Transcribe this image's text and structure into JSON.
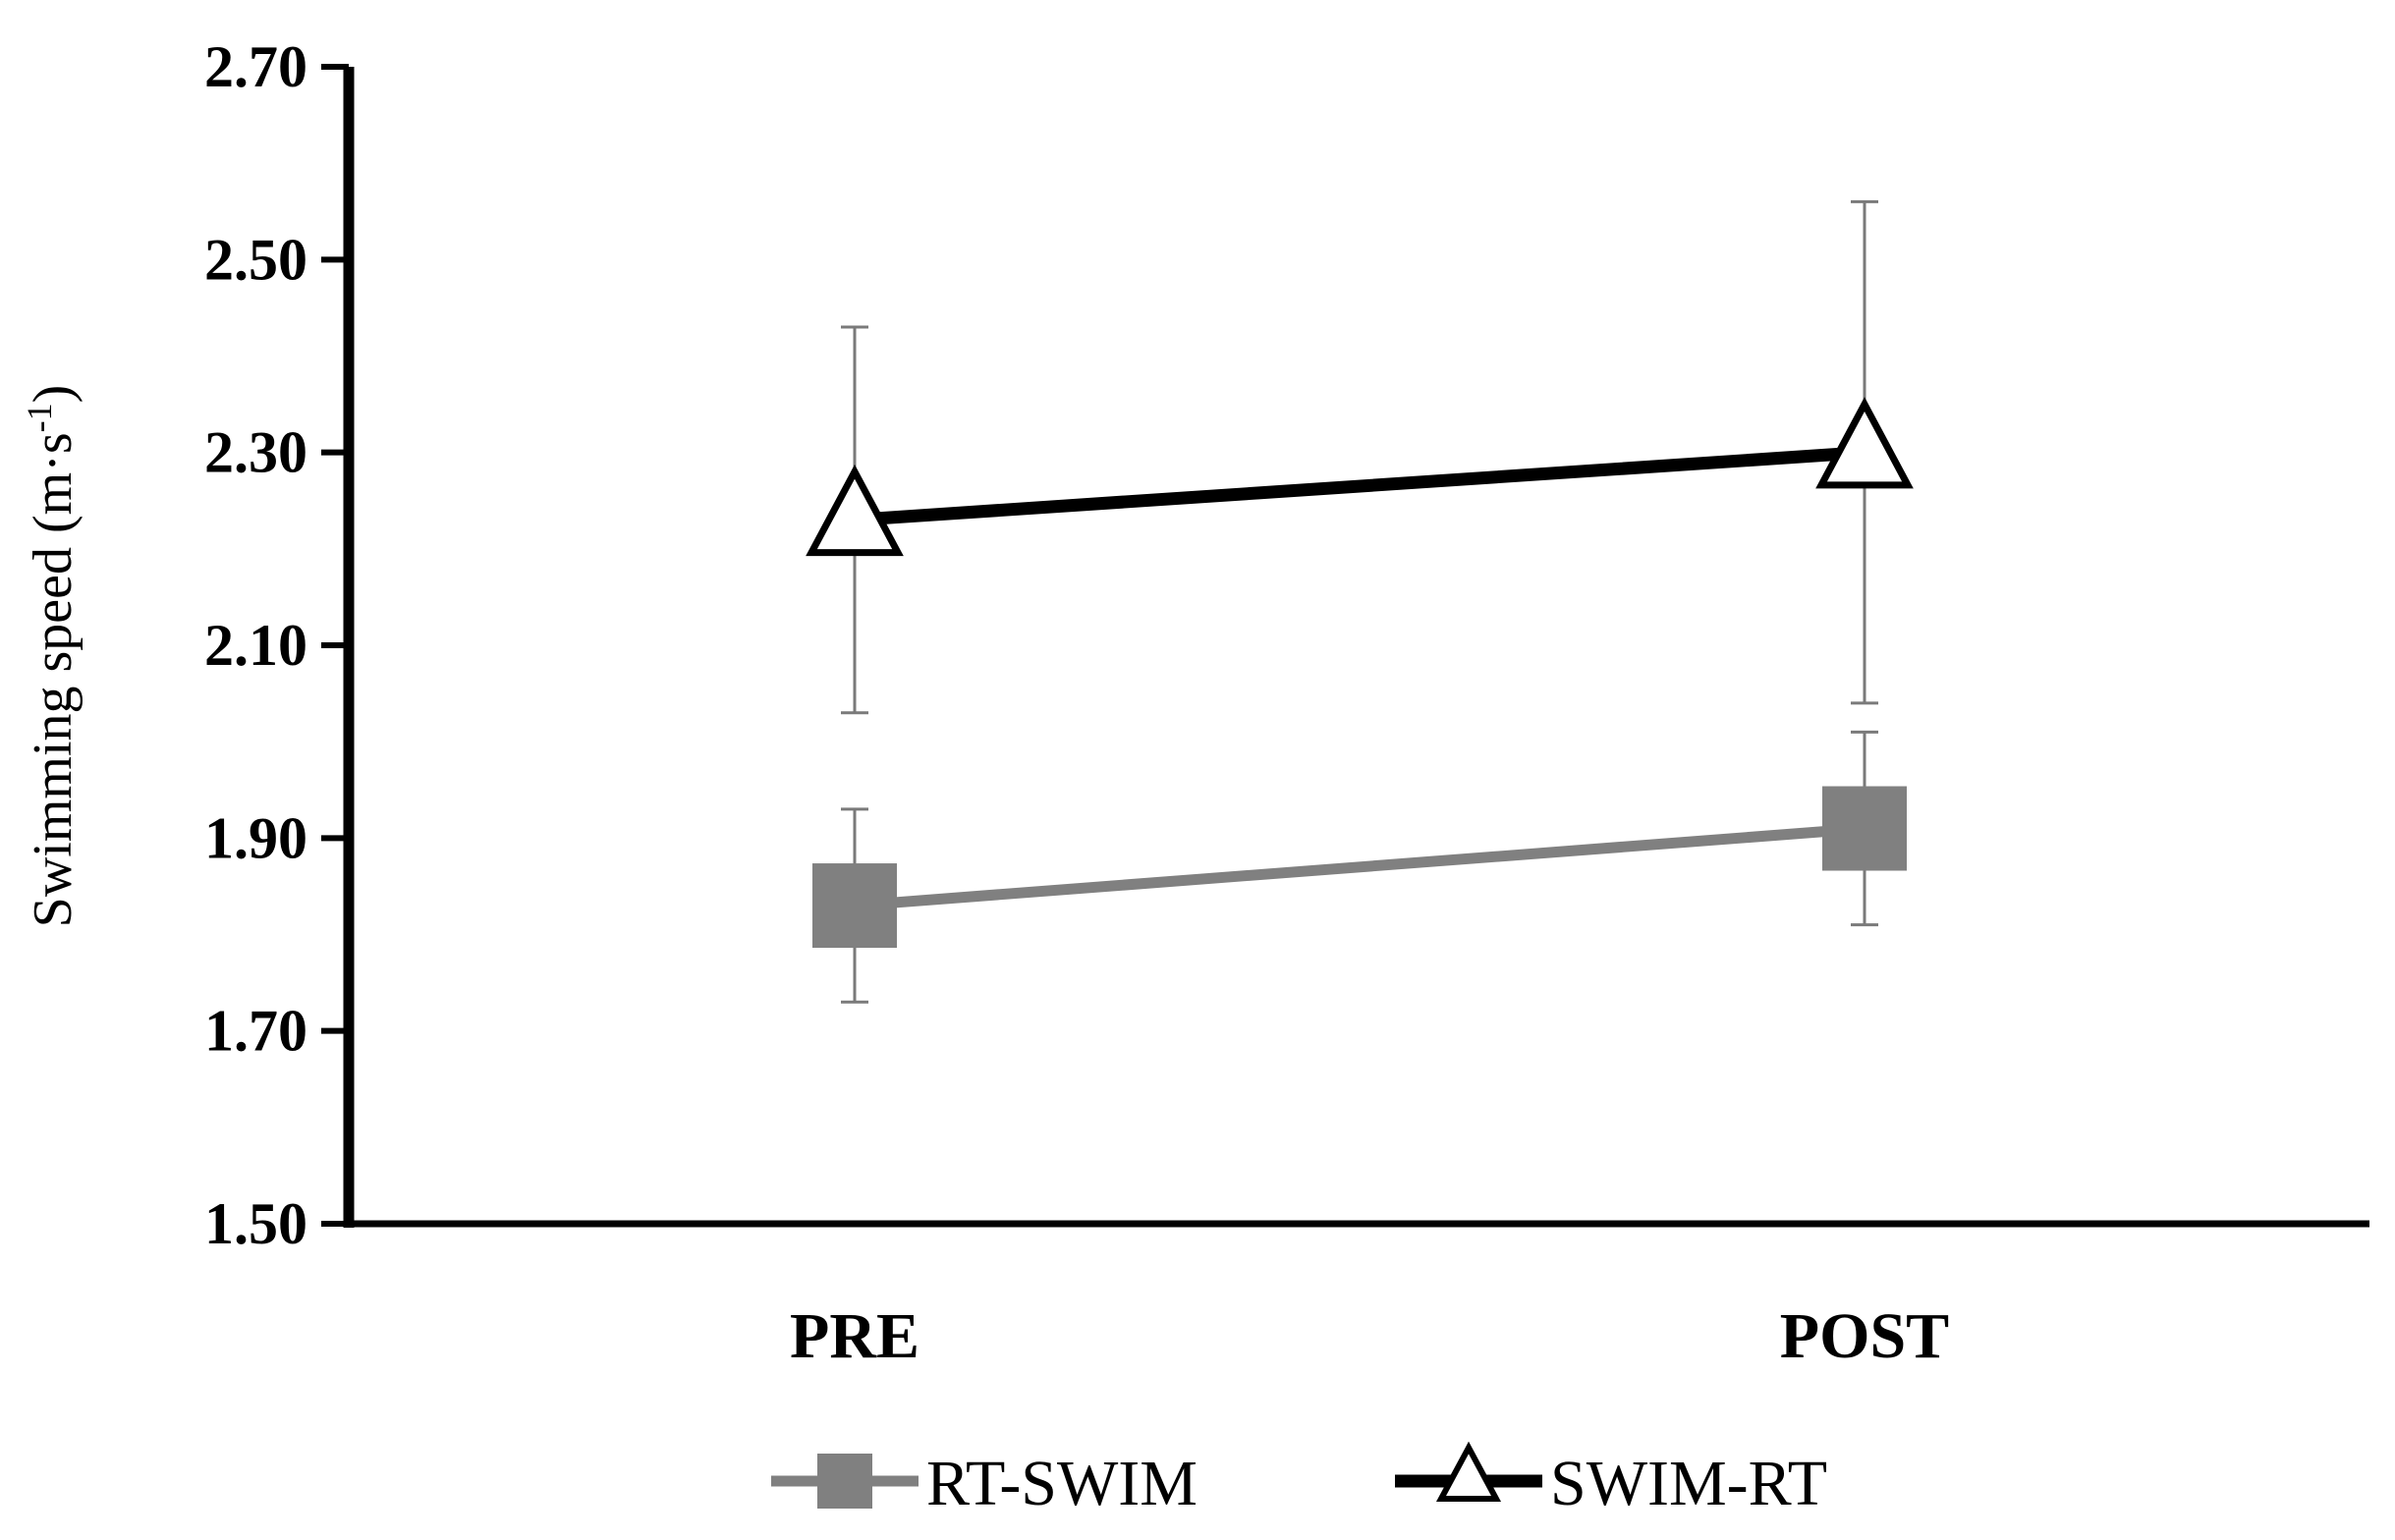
{
  "chart_data": {
    "type": "line",
    "categories": [
      "PRE",
      "POST"
    ],
    "ylabel": "Swimming speed (m·s",
    "ylabel_superscript": "-1",
    "ylabel_close": ")",
    "ylim": [
      1.5,
      2.7
    ],
    "yticks": [
      "1.50",
      "1.70",
      "1.90",
      "2.10",
      "2.30",
      "2.50",
      "2.70"
    ],
    "ytick_values": [
      1.5,
      1.7,
      1.9,
      2.1,
      2.3,
      2.5,
      2.7
    ],
    "grid": false,
    "legend_position": "bottom",
    "series": [
      {
        "name": "RT-SWIM",
        "values": [
          1.83,
          1.91
        ],
        "errors": [
          0.1,
          0.1
        ],
        "marker": "square",
        "color": "#808080"
      },
      {
        "name": "SWIM-RT",
        "values": [
          2.23,
          2.3
        ],
        "errors": [
          0.2,
          0.26
        ],
        "marker": "triangle-open",
        "color": "#000000"
      }
    ]
  }
}
